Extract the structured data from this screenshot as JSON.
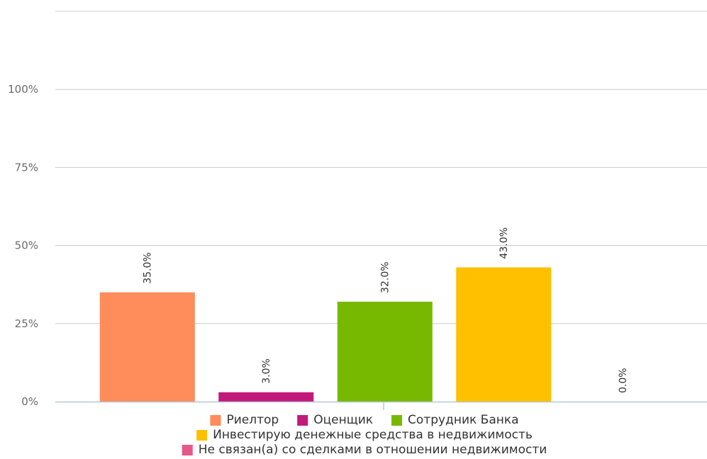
{
  "chart_data": {
    "type": "bar",
    "categories": [
      "Риелтор",
      "Оценщик",
      "Сотрудник Банка",
      "Инвестирую денежные средства в недвижимость",
      "Не связан(а) со сделками в отношении недвижимости"
    ],
    "values": [
      35.0,
      3.0,
      32.0,
      43.0,
      0.0
    ],
    "data_labels": [
      "35.0%",
      "3.0%",
      "32.0%",
      "43.0%",
      "0.0%"
    ],
    "colors": [
      "#ff8c5a",
      "#c2187a",
      "#77b900",
      "#ffc000",
      "#e8578a"
    ],
    "y_ticks": [
      {
        "value": 0,
        "label": "0%"
      },
      {
        "value": 25,
        "label": "25%"
      },
      {
        "value": 50,
        "label": "50%"
      },
      {
        "value": 75,
        "label": "75%"
      },
      {
        "value": 100,
        "label": "100%"
      }
    ],
    "ylim": [
      0,
      125
    ],
    "grid": true,
    "legend_position": "bottom",
    "title": "",
    "xlabel": "",
    "ylabel": ""
  }
}
